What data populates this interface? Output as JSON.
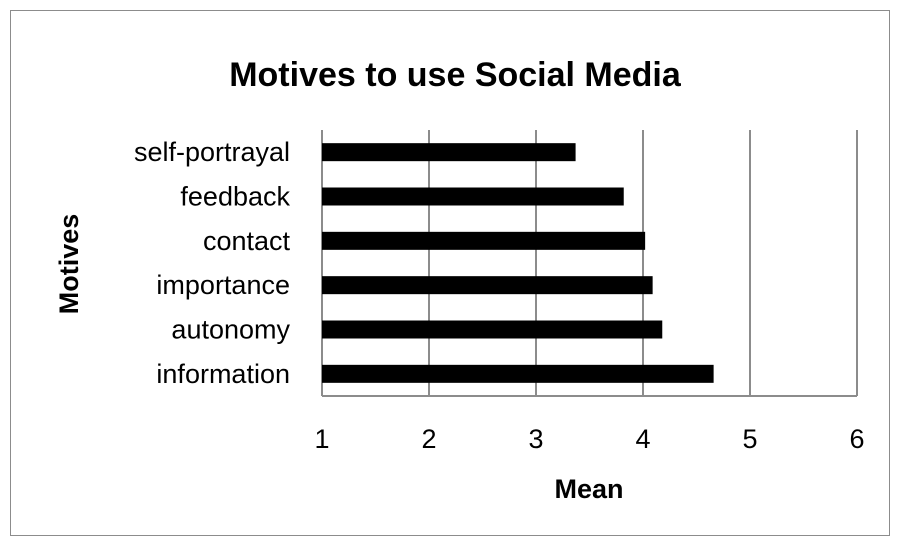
{
  "chart_data": {
    "type": "bar",
    "orientation": "horizontal",
    "title": "Motives to use Social Media",
    "xlabel": "Mean",
    "ylabel": "Motives",
    "categories": [
      "information",
      "autonomy",
      "importance",
      "contact",
      "feedback",
      "self-portrayal"
    ],
    "values": [
      4.66,
      4.18,
      4.09,
      4.02,
      3.82,
      3.37
    ],
    "xlim": [
      1,
      6
    ],
    "xticks": [
      "1",
      "2",
      "3",
      "4",
      "5",
      "6"
    ],
    "grid": "vertical",
    "legend": "none",
    "bar_color": "#000000",
    "grid_color": "#8c8c8c"
  }
}
